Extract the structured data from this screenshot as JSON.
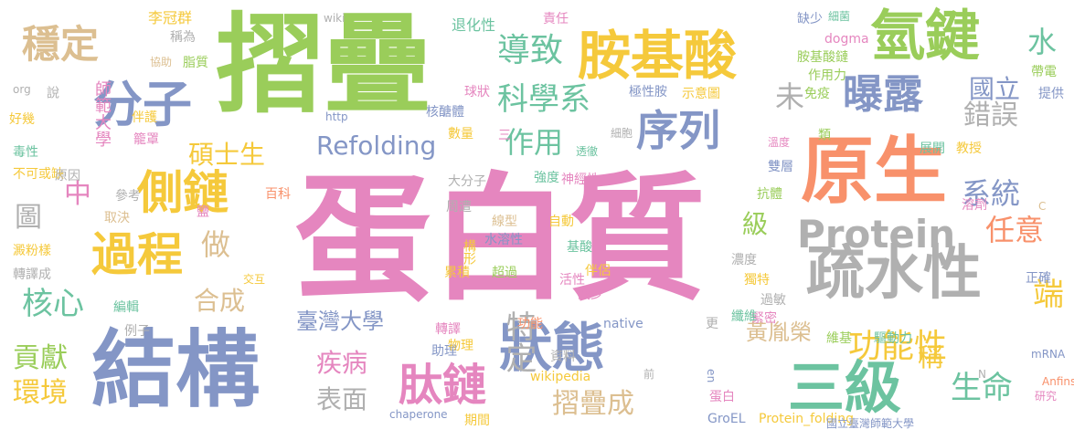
{
  "colors": {
    "pink": "#e586bf",
    "green": "#9acd5a",
    "blue": "#8496c6",
    "orange": "#f8916b",
    "gray": "#b0b0b0",
    "teal": "#6cc3a0",
    "yellow": "#f5c93b",
    "tan": "#dcbf91"
  },
  "words": [
    {
      "text": "蛋白質",
      "color": "pink"
    },
    {
      "text": "摺疊",
      "color": "green"
    },
    {
      "text": "結構",
      "color": "blue"
    },
    {
      "text": "原生",
      "color": "orange"
    },
    {
      "text": "胺基酸",
      "color": "yellow"
    },
    {
      "text": "氫鍵",
      "color": "green"
    },
    {
      "text": "疏水性",
      "color": "gray"
    },
    {
      "text": "分子",
      "color": "blue"
    },
    {
      "text": "Protein",
      "color": "gray"
    },
    {
      "text": "側鏈",
      "color": "yellow"
    },
    {
      "text": "過程",
      "color": "yellow"
    },
    {
      "text": "三級",
      "color": "teal"
    },
    {
      "text": "狀態",
      "color": "blue"
    },
    {
      "text": "穩定",
      "color": "tan"
    },
    {
      "text": "Refolding",
      "color": "blue"
    },
    {
      "text": "序列",
      "color": "blue"
    },
    {
      "text": "曝露",
      "color": "blue"
    },
    {
      "text": "肽鏈",
      "color": "pink"
    },
    {
      "text": "功能性",
      "color": "yellow"
    },
    {
      "text": "導致",
      "color": "teal"
    },
    {
      "text": "科學系",
      "color": "teal"
    },
    {
      "text": "作用",
      "color": "teal"
    },
    {
      "text": "系統",
      "color": "blue"
    },
    {
      "text": "錯誤",
      "color": "gray"
    },
    {
      "text": "核心",
      "color": "teal"
    },
    {
      "text": "合成",
      "color": "tan"
    },
    {
      "text": "做",
      "color": "tan"
    },
    {
      "text": "特定",
      "color": "gray"
    },
    {
      "text": "疾病",
      "color": "pink"
    },
    {
      "text": "表面",
      "color": "gray"
    },
    {
      "text": "摺疊成",
      "color": "tan"
    },
    {
      "text": "貢獻",
      "color": "green"
    },
    {
      "text": "環境",
      "color": "yellow"
    },
    {
      "text": "生命",
      "color": "teal"
    },
    {
      "text": "任意",
      "color": "orange"
    },
    {
      "text": "水",
      "color": "teal"
    },
    {
      "text": "未",
      "color": "gray"
    },
    {
      "text": "端",
      "color": "yellow"
    },
    {
      "text": "國立",
      "color": "blue"
    },
    {
      "text": "級",
      "color": "green"
    },
    {
      "text": "稱",
      "color": "yellow"
    },
    {
      "text": "碩士生",
      "color": "yellow"
    },
    {
      "text": "臺灣大學",
      "color": "blue"
    },
    {
      "text": "黃胤榮",
      "color": "tan"
    },
    {
      "text": "師範大學",
      "color": "pink"
    },
    {
      "text": "中",
      "color": "pink"
    },
    {
      "text": "圖",
      "color": "gray"
    },
    {
      "text": "李冠群",
      "color": "yellow"
    },
    {
      "text": "稱為",
      "color": "gray"
    },
    {
      "text": "協助",
      "color": "tan"
    },
    {
      "text": "脂質",
      "color": "green"
    },
    {
      "text": "wiki",
      "color": "gray"
    },
    {
      "text": "退化性",
      "color": "teal"
    },
    {
      "text": "責任",
      "color": "pink"
    },
    {
      "text": "缺少",
      "color": "blue"
    },
    {
      "text": "細菌",
      "color": "teal"
    },
    {
      "text": "dogma",
      "color": "pink"
    },
    {
      "text": "胺基酸鏈",
      "color": "green"
    },
    {
      "text": "作用力",
      "color": "green"
    },
    {
      "text": "帶電",
      "color": "green"
    },
    {
      "text": "提供",
      "color": "blue"
    },
    {
      "text": "org",
      "color": "gray"
    },
    {
      "text": "說",
      "color": "gray"
    },
    {
      "text": "免疫",
      "color": "green"
    },
    {
      "text": "示意圖",
      "color": "yellow"
    },
    {
      "text": "極性胺",
      "color": "blue"
    },
    {
      "text": "球狀",
      "color": "pink"
    },
    {
      "text": "好幾",
      "color": "yellow"
    },
    {
      "text": "伴護",
      "color": "yellow"
    },
    {
      "text": "http",
      "color": "blue"
    },
    {
      "text": "核醣體",
      "color": "blue"
    },
    {
      "text": "毒性",
      "color": "teal"
    },
    {
      "text": "籠罩",
      "color": "pink"
    },
    {
      "text": "數量",
      "color": "yellow"
    },
    {
      "text": "三",
      "color": "pink"
    },
    {
      "text": "細胞",
      "color": "gray"
    },
    {
      "text": "溫度",
      "color": "pink"
    },
    {
      "text": "類",
      "color": "green"
    },
    {
      "text": "不可或缺",
      "color": "yellow"
    },
    {
      "text": "原因",
      "color": "gray"
    },
    {
      "text": "透徹",
      "color": "teal"
    },
    {
      "text": "教授",
      "color": "yellow"
    },
    {
      "text": "展開",
      "color": "teal"
    },
    {
      "text": "雙層",
      "color": "blue"
    },
    {
      "text": "強度",
      "color": "teal"
    },
    {
      "text": "神經性",
      "color": "pink"
    },
    {
      "text": "大分子",
      "color": "gray"
    },
    {
      "text": "參考",
      "color": "gray"
    },
    {
      "text": "百科",
      "color": "orange"
    },
    {
      "text": "抗體",
      "color": "green"
    },
    {
      "text": "取決",
      "color": "tan"
    },
    {
      "text": "鹽",
      "color": "pink"
    },
    {
      "text": "周遭",
      "color": "gray"
    },
    {
      "text": "線型",
      "color": "tan"
    },
    {
      "text": "自動",
      "color": "yellow"
    },
    {
      "text": "溶劑",
      "color": "pink"
    },
    {
      "text": "水溶性",
      "color": "blue"
    },
    {
      "text": "C",
      "color": "tan"
    },
    {
      "text": "澱粉樣",
      "color": "yellow"
    },
    {
      "text": "基酸",
      "color": "teal"
    },
    {
      "text": "轉譯成",
      "color": "gray"
    },
    {
      "text": "構形",
      "color": "yellow"
    },
    {
      "text": "濃度",
      "color": "gray"
    },
    {
      "text": "交互",
      "color": "yellow"
    },
    {
      "text": "累積",
      "color": "yellow"
    },
    {
      "text": "獨特",
      "color": "yellow"
    },
    {
      "text": "超過",
      "color": "green"
    },
    {
      "text": "s",
      "color": "pink"
    },
    {
      "text": "活性",
      "color": "pink"
    },
    {
      "text": "伴侶",
      "color": "yellow"
    },
    {
      "text": "正確",
      "color": "blue"
    },
    {
      "text": "編輯",
      "color": "teal"
    },
    {
      "text": "減少",
      "color": "pink"
    },
    {
      "text": "過敏",
      "color": "gray"
    },
    {
      "text": "例子",
      "color": "gray"
    },
    {
      "text": "緊密",
      "color": "pink"
    },
    {
      "text": "native",
      "color": "blue"
    },
    {
      "text": "功能",
      "color": "orange"
    },
    {
      "text": "更",
      "color": "gray"
    },
    {
      "text": "纖維",
      "color": "teal"
    },
    {
      "text": "轉譯",
      "color": "pink"
    },
    {
      "text": "助理",
      "color": "blue"
    },
    {
      "text": "物理",
      "color": "yellow"
    },
    {
      "text": "維基",
      "color": "green"
    },
    {
      "text": "驅動力",
      "color": "teal"
    },
    {
      "text": "資料",
      "color": "gray"
    },
    {
      "text": "mRNA",
      "color": "blue"
    },
    {
      "text": "wikipedia",
      "color": "yellow"
    },
    {
      "text": "前",
      "color": "gray"
    },
    {
      "text": "en",
      "color": "blue"
    },
    {
      "text": "N",
      "color": "gray"
    },
    {
      "text": "Anfinsen",
      "color": "orange"
    },
    {
      "text": "蛋白",
      "color": "pink"
    },
    {
      "text": "研究",
      "color": "pink"
    },
    {
      "text": "chaperone",
      "color": "blue"
    },
    {
      "text": "期間",
      "color": "yellow"
    },
    {
      "text": "GroEL",
      "color": "blue"
    },
    {
      "text": "Protein_folding",
      "color": "yellow"
    },
    {
      "text": "國立臺灣師範大學",
      "color": "blue"
    }
  ]
}
